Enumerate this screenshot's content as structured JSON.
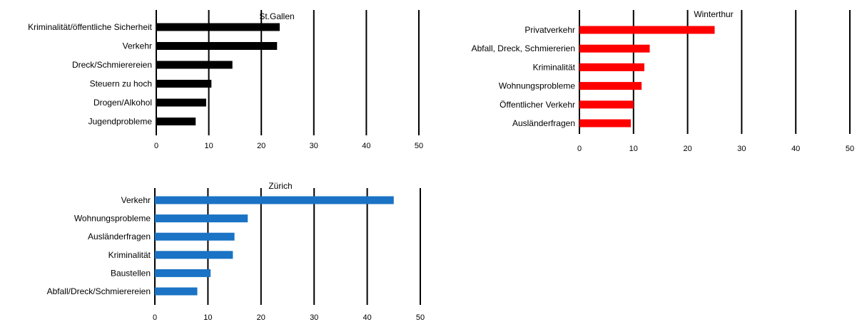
{
  "chart_data": [
    {
      "type": "bar",
      "orientation": "horizontal",
      "title": "St.Gallen",
      "categories": [
        "Kriminalität/öffentliche Sicherheit",
        "Verkehr",
        "Dreck/Schmierereien",
        "Steuern zu hoch",
        "Drogen/Alkohol",
        "Jugendprobleme"
      ],
      "values": [
        23.5,
        23,
        14.5,
        10.5,
        9.5,
        7.5
      ],
      "xlim": [
        0,
        50
      ],
      "xticks": [
        "0",
        "10",
        "20",
        "30",
        "40",
        "50"
      ],
      "color": "#000000",
      "grid": "vertical"
    },
    {
      "type": "bar",
      "orientation": "horizontal",
      "title": "Winterthur",
      "categories": [
        "Privatverkehr",
        "Abfall, Dreck, Schmiererien",
        "Kriminalität",
        "Wohnungsprobleme",
        "Öffentlicher Verkehr",
        "Ausländerfragen"
      ],
      "values": [
        25,
        13,
        12,
        11.5,
        10,
        9.5
      ],
      "xlim": [
        0,
        50
      ],
      "xticks": [
        "0",
        "10",
        "20",
        "30",
        "40",
        "50"
      ],
      "color": "#ff0000",
      "grid": "vertical"
    },
    {
      "type": "bar",
      "orientation": "horizontal",
      "title": "Zürich",
      "categories": [
        "Verkehr",
        "Wohnungsprobleme",
        "Ausländerfragen",
        "Kriminalität",
        "Baustellen",
        "Abfall/Dreck/Schmierereien"
      ],
      "values": [
        45,
        17.5,
        15,
        14.7,
        10.5,
        8
      ],
      "xlim": [
        0,
        50
      ],
      "xticks": [
        "0",
        "10",
        "20",
        "30",
        "40",
        "50"
      ],
      "color": "#1a73c4",
      "grid": "vertical"
    }
  ]
}
